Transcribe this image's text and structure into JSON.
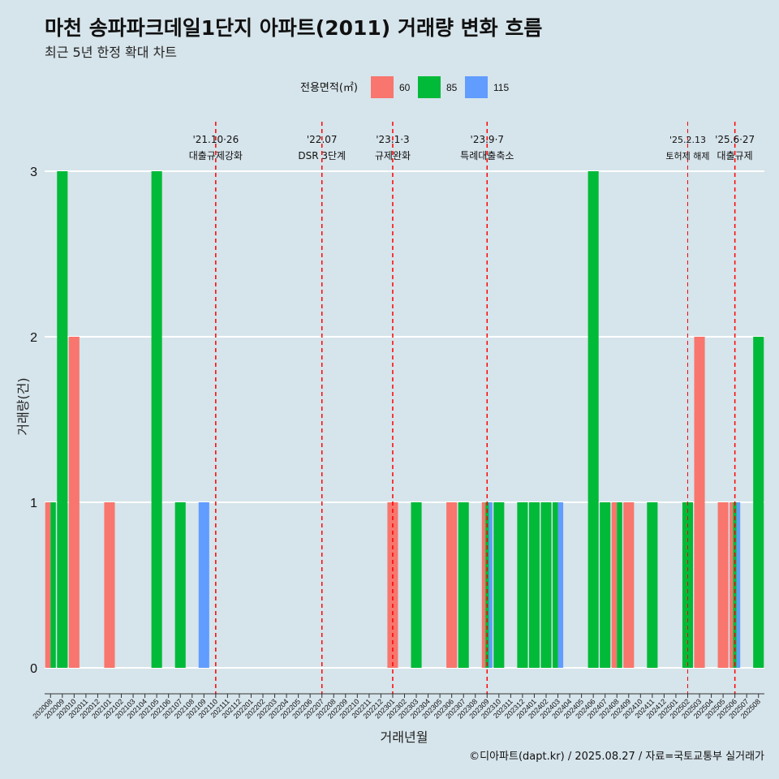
{
  "chart_data": {
    "type": "bar",
    "title": "마천 송파파크데일1단지 아파트(2011) 거래량 변화 흐름",
    "subtitle": "최근 5년 한정 확대 차트",
    "xlabel": "거래년월",
    "ylabel": "거래량(건)",
    "caption": "©디아파트(dapt.kr) / 2025.08.27 / 자료=국토교통부 실거래가",
    "legend": {
      "title": "전용면적(㎡)",
      "position": "top"
    },
    "ylim": [
      0,
      3
    ],
    "yticks": [
      "0",
      "1",
      "2",
      "3"
    ],
    "grid": true,
    "categories": [
      "202008",
      "202009",
      "202010",
      "202011",
      "202012",
      "202101",
      "202102",
      "202103",
      "202104",
      "202105",
      "202106",
      "202107",
      "202108",
      "202109",
      "202110",
      "202111",
      "202112",
      "202201",
      "202202",
      "202203",
      "202204",
      "202205",
      "202206",
      "202207",
      "202208",
      "202209",
      "202210",
      "202211",
      "202212",
      "202301",
      "202302",
      "202303",
      "202304",
      "202305",
      "202306",
      "202307",
      "202308",
      "202309",
      "202310",
      "202311",
      "202312",
      "202401",
      "202402",
      "202403",
      "202404",
      "202405",
      "202406",
      "202407",
      "202408",
      "202409",
      "202410",
      "202411",
      "202412",
      "202501",
      "202502",
      "202503",
      "202504",
      "202505",
      "202506",
      "202507",
      "202508"
    ],
    "series": [
      {
        "name": "60",
        "color": "#f8766d",
        "values": [
          1,
          0,
          2,
          0,
          0,
          1,
          0,
          0,
          0,
          0,
          0,
          0,
          0,
          0,
          0,
          0,
          0,
          0,
          0,
          0,
          0,
          0,
          0,
          0,
          0,
          0,
          0,
          0,
          0,
          1,
          0,
          0,
          0,
          0,
          1,
          0,
          0,
          1,
          0,
          0,
          0,
          0,
          0,
          0,
          0,
          0,
          0,
          0,
          1,
          1,
          0,
          0,
          0,
          0,
          0,
          2,
          0,
          1,
          1,
          0,
          0
        ]
      },
      {
        "name": "85",
        "color": "#00ba38",
        "values": [
          1,
          3,
          0,
          0,
          0,
          0,
          0,
          0,
          0,
          3,
          0,
          1,
          0,
          0,
          0,
          0,
          0,
          0,
          0,
          0,
          0,
          0,
          0,
          0,
          0,
          0,
          0,
          0,
          0,
          0,
          0,
          1,
          0,
          0,
          0,
          1,
          0,
          1,
          1,
          0,
          1,
          1,
          1,
          1,
          0,
          0,
          3,
          1,
          1,
          0,
          0,
          1,
          0,
          0,
          1,
          0,
          0,
          0,
          1,
          0,
          2
        ]
      },
      {
        "name": "115",
        "color": "#619cff",
        "values": [
          0,
          0,
          0,
          0,
          0,
          0,
          0,
          0,
          0,
          0,
          0,
          0,
          0,
          1,
          0,
          0,
          0,
          0,
          0,
          0,
          0,
          0,
          0,
          0,
          0,
          0,
          0,
          0,
          0,
          0,
          0,
          0,
          0,
          0,
          0,
          0,
          0,
          1,
          0,
          0,
          0,
          0,
          0,
          1,
          0,
          0,
          0,
          0,
          0,
          0,
          0,
          0,
          0,
          0,
          0,
          0,
          0,
          0,
          1,
          0,
          0
        ]
      }
    ],
    "annotations": [
      {
        "position": 14.5,
        "date": "'21.10·26",
        "label": "대출규제강화",
        "small": false
      },
      {
        "position": 23.5,
        "date": "'22.07",
        "label": "DSR 3단계",
        "small": false
      },
      {
        "position": 29.5,
        "date": "'23.1·3",
        "label": "규제완화",
        "small": false
      },
      {
        "position": 37.5,
        "date": "'23.9·7",
        "label": "특례대출축소",
        "small": false
      },
      {
        "position": 54.5,
        "date": "'25.2.13",
        "label": "토허제 해제",
        "small": true
      },
      {
        "position": 58.5,
        "date": "'25.6·27",
        "label": "대출규제",
        "small": false
      }
    ],
    "annotation_line_color": "#ff0000"
  }
}
